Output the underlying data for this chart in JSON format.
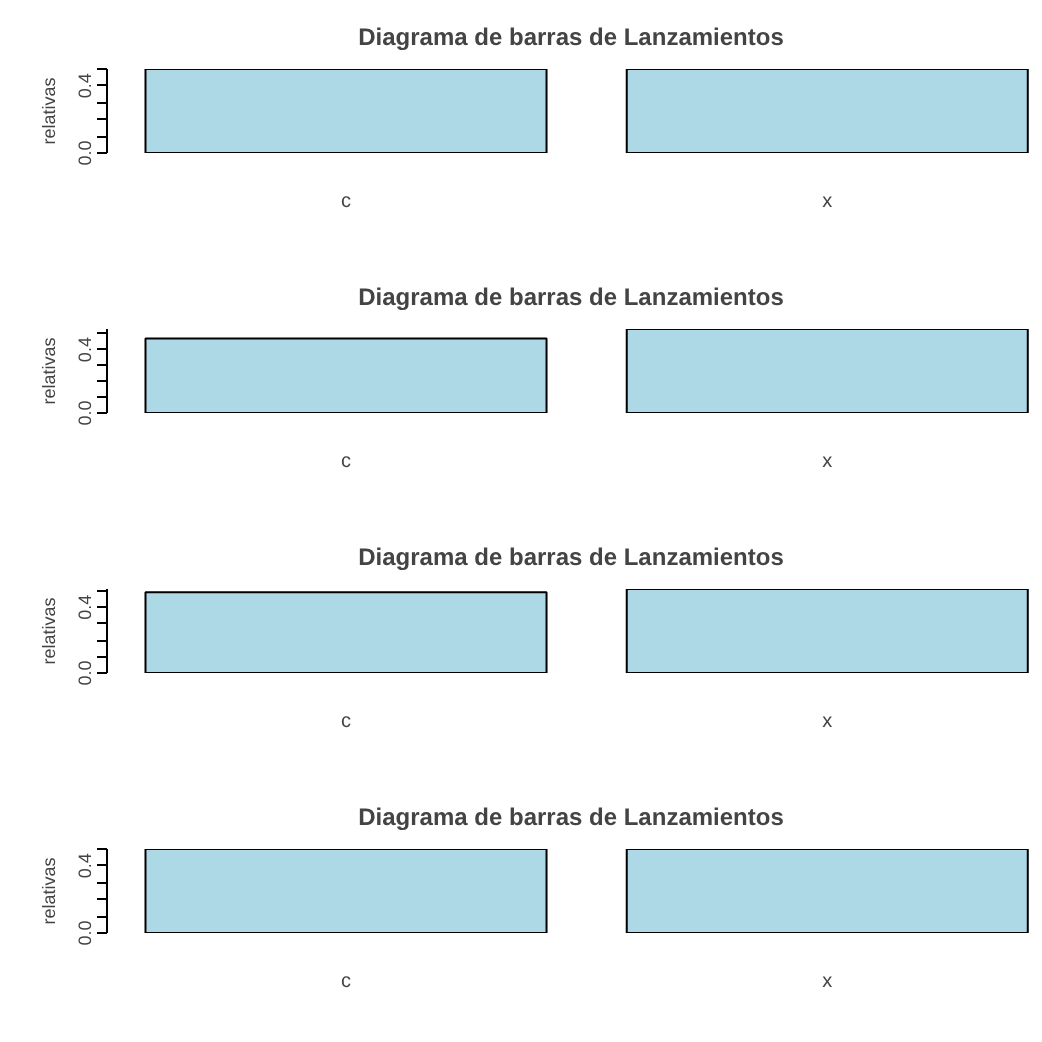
{
  "chart_data": [
    {
      "type": "bar",
      "title": "Diagrama de barras de Lanzamientos",
      "ylabel": "relativas",
      "categories": [
        "c",
        "x"
      ],
      "values": [
        0.5,
        0.5
      ],
      "color": "#add8e6",
      "ylim": [
        0,
        0.5
      ],
      "yticks": [
        {
          "value": 0,
          "label": "0.0"
        },
        {
          "value": 0.1,
          "label": null
        },
        {
          "value": 0.2,
          "label": null
        },
        {
          "value": 0.3,
          "label": null
        },
        {
          "value": 0.4,
          "label": "0.4"
        },
        {
          "value": 0.5,
          "label": null
        }
      ]
    },
    {
      "type": "bar",
      "title": "Diagrama de barras de Lanzamientos",
      "ylabel": "relativas",
      "categories": [
        "c",
        "x"
      ],
      "values": [
        0.47,
        0.53
      ],
      "color": "#add8e6",
      "ylim": [
        0,
        0.53
      ],
      "yticks": [
        {
          "value": 0,
          "label": "0.0"
        },
        {
          "value": 0.1,
          "label": null
        },
        {
          "value": 0.2,
          "label": null
        },
        {
          "value": 0.3,
          "label": null
        },
        {
          "value": 0.4,
          "label": "0.4"
        },
        {
          "value": 0.5,
          "label": null
        }
      ]
    },
    {
      "type": "bar",
      "title": "Diagrama de barras de Lanzamientos",
      "ylabel": "relativas",
      "categories": [
        "c",
        "x"
      ],
      "values": [
        0.49,
        0.51
      ],
      "color": "#add8e6",
      "ylim": [
        0,
        0.51
      ],
      "yticks": [
        {
          "value": 0,
          "label": "0.0"
        },
        {
          "value": 0.1,
          "label": null
        },
        {
          "value": 0.2,
          "label": null
        },
        {
          "value": 0.3,
          "label": null
        },
        {
          "value": 0.4,
          "label": "0.4"
        },
        {
          "value": 0.5,
          "label": null
        }
      ]
    },
    {
      "type": "bar",
      "title": "Diagrama de barras de Lanzamientos",
      "ylabel": "relativas",
      "categories": [
        "c",
        "x"
      ],
      "values": [
        0.5,
        0.5
      ],
      "color": "#add8e6",
      "ylim": [
        0,
        0.5
      ],
      "yticks": [
        {
          "value": 0,
          "label": "0.0"
        },
        {
          "value": 0.1,
          "label": null
        },
        {
          "value": 0.2,
          "label": null
        },
        {
          "value": 0.3,
          "label": null
        },
        {
          "value": 0.4,
          "label": "0.4"
        },
        {
          "value": 0.5,
          "label": null
        }
      ]
    }
  ]
}
